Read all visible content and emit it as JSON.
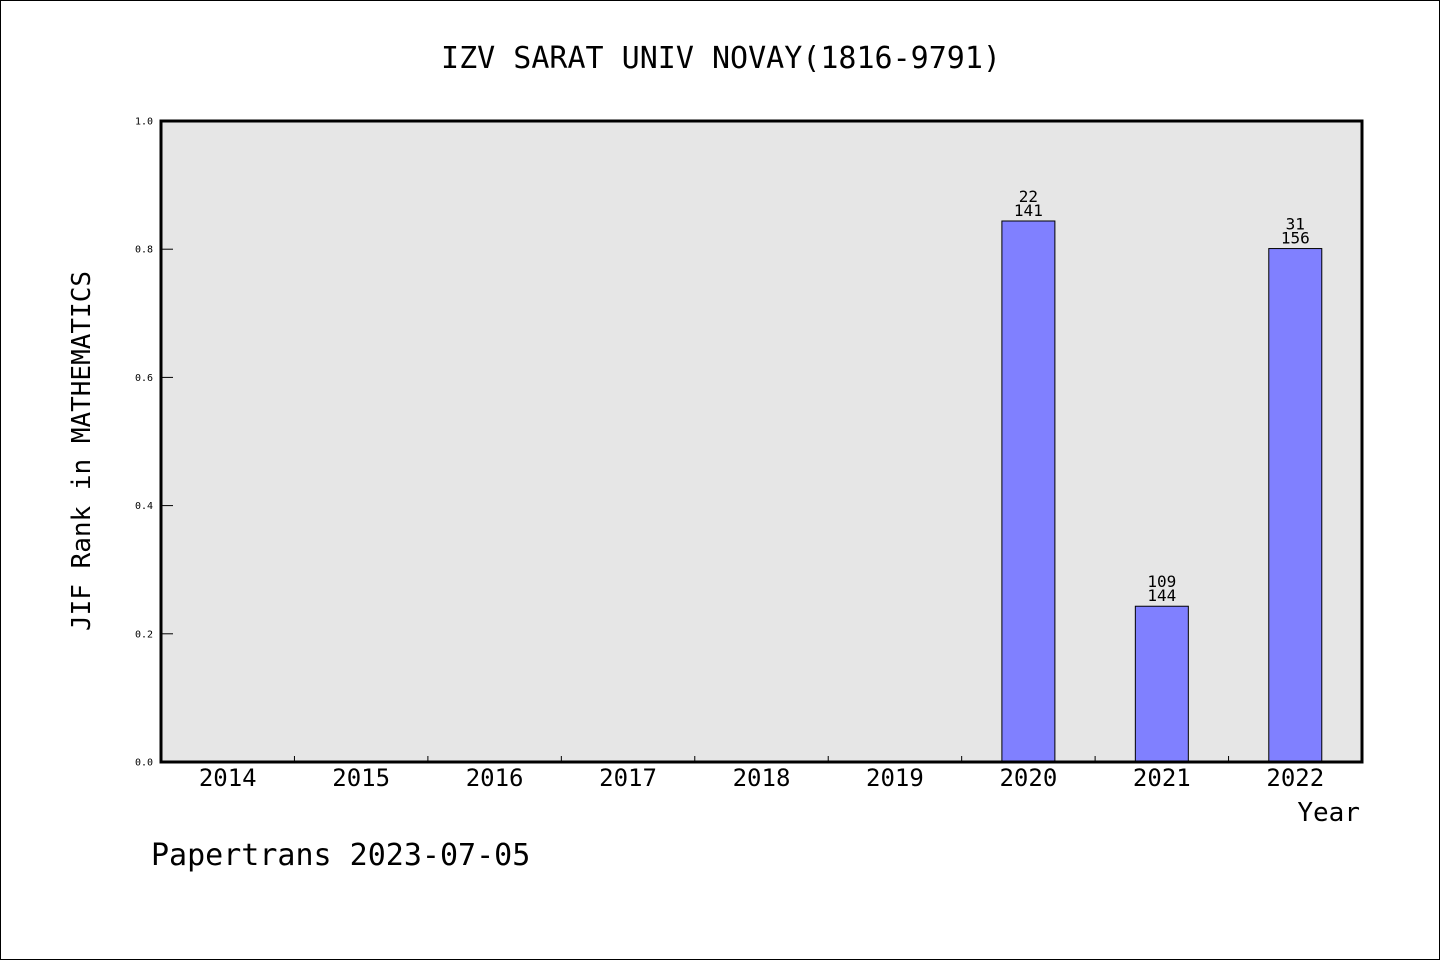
{
  "colors": {
    "plot_background": "#e6e6e6",
    "bar_fill": "#8080ff",
    "bar_stroke": "#000000",
    "axis": "#000000",
    "page_background": "#ffffff"
  },
  "footer": {
    "text": "Papertrans 2023-07-05"
  },
  "chart_data": {
    "type": "bar",
    "title": "IZV SARAT UNIV NOVAY(1816-9791)",
    "xlabel": "Year",
    "ylabel": "JIF Rank in MATHEMATICS",
    "ylim": [
      0,
      1.0
    ],
    "yticks": [
      0.0,
      0.2,
      0.4,
      0.6,
      0.8,
      1.0
    ],
    "ytick_labels": [
      "0.0",
      "0.2",
      "0.4",
      "0.6",
      "0.8",
      "1.0"
    ],
    "grid": false,
    "categories": [
      "2014",
      "2015",
      "2016",
      "2017",
      "2018",
      "2019",
      "2020",
      "2021",
      "2022"
    ],
    "values": [
      null,
      null,
      null,
      null,
      null,
      null,
      0.844,
      0.243,
      0.801
    ],
    "bar_labels": [
      null,
      null,
      null,
      null,
      null,
      null,
      {
        "rank": "22",
        "total": "141"
      },
      {
        "rank": "109",
        "total": "144"
      },
      {
        "rank": "31",
        "total": "156"
      }
    ]
  }
}
